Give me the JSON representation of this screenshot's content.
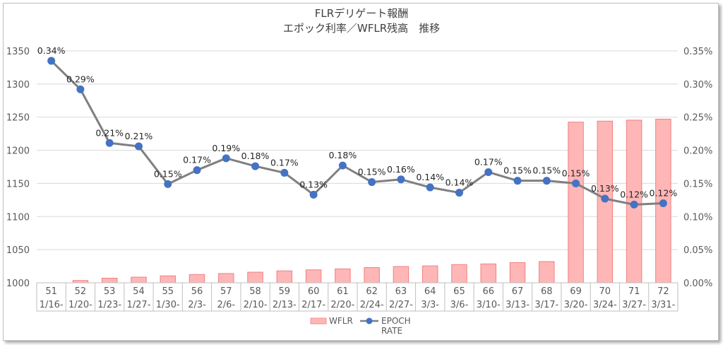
{
  "chart_data": {
    "type": "bar+line",
    "title": [
      "FLRデリゲート報酬",
      "エポック利率／WFLR残高　推移"
    ],
    "categories": [
      {
        "epoch": "51",
        "date": "1/16-"
      },
      {
        "epoch": "52",
        "date": "1/20-"
      },
      {
        "epoch": "53",
        "date": "1/23-"
      },
      {
        "epoch": "54",
        "date": "1/27-"
      },
      {
        "epoch": "55",
        "date": "1/30-"
      },
      {
        "epoch": "56",
        "date": "2/3-"
      },
      {
        "epoch": "57",
        "date": "2/6-"
      },
      {
        "epoch": "58",
        "date": "2/10-"
      },
      {
        "epoch": "59",
        "date": "2/13-"
      },
      {
        "epoch": "60",
        "date": "2/17-"
      },
      {
        "epoch": "61",
        "date": "2/20-"
      },
      {
        "epoch": "62",
        "date": "2/24-"
      },
      {
        "epoch": "63",
        "date": "2/27-"
      },
      {
        "epoch": "64",
        "date": "3/3-"
      },
      {
        "epoch": "65",
        "date": "3/6-"
      },
      {
        "epoch": "66",
        "date": "3/10-"
      },
      {
        "epoch": "67",
        "date": "3/13-"
      },
      {
        "epoch": "68",
        "date": "3/17-"
      },
      {
        "epoch": "69",
        "date": "3/20-"
      },
      {
        "epoch": "70",
        "date": "3/24-"
      },
      {
        "epoch": "71",
        "date": "3/27-"
      },
      {
        "epoch": "72",
        "date": "3/31-"
      }
    ],
    "series": [
      {
        "name": "WFLR",
        "kind": "bar",
        "axis": "left",
        "color": "#ffb6b6",
        "border": "#f08080",
        "values": [
          1000,
          1003.5,
          1007,
          1008.5,
          1010.5,
          1012.5,
          1014,
          1016,
          1018,
          1019.5,
          1021,
          1023,
          1024.5,
          1025.5,
          1027.5,
          1028.5,
          1030.5,
          1032,
          1242.5,
          1244,
          1245.5,
          1247
        ]
      },
      {
        "name": "EPOCH RATE",
        "legend_lines": [
          "EPOCH",
          "RATE"
        ],
        "kind": "line",
        "axis": "right",
        "line_color": "#7f7f7f",
        "marker_color": "#4472c4",
        "values": [
          0.34,
          0.29,
          0.21,
          0.21,
          0.15,
          0.17,
          0.19,
          0.18,
          0.17,
          0.13,
          0.18,
          0.15,
          0.16,
          0.14,
          0.14,
          0.17,
          0.15,
          0.15,
          0.15,
          0.13,
          0.12,
          0.12
        ],
        "plot_values": [
          0.335,
          0.292,
          0.211,
          0.206,
          0.149,
          0.17,
          0.188,
          0.176,
          0.166,
          0.133,
          0.177,
          0.152,
          0.156,
          0.144,
          0.136,
          0.167,
          0.154,
          0.154,
          0.15,
          0.127,
          0.118,
          0.12
        ],
        "labels": [
          "0.34%",
          "0.29%",
          "0.21%",
          "0.21%",
          "0.15%",
          "0.17%",
          "0.19%",
          "0.18%",
          "0.17%",
          "0.13%",
          "0.18%",
          "0.15%",
          "0.16%",
          "0.14%",
          "0.14%",
          "0.17%",
          "0.15%",
          "0.15%",
          "0.15%",
          "0.13%",
          "0.12%",
          "0.12%"
        ]
      }
    ],
    "y_left": {
      "min": 1000,
      "max": 1350,
      "step": 50,
      "ticks": [
        "1000",
        "1050",
        "1100",
        "1150",
        "1200",
        "1250",
        "1300",
        "1350"
      ]
    },
    "y_right": {
      "min": 0,
      "max": 0.35,
      "step": 0.05,
      "ticks": [
        "0.00%",
        "0.05%",
        "0.10%",
        "0.15%",
        "0.20%",
        "0.25%",
        "0.30%",
        "0.35%"
      ]
    },
    "grid": true,
    "legend_position": "bottom"
  }
}
